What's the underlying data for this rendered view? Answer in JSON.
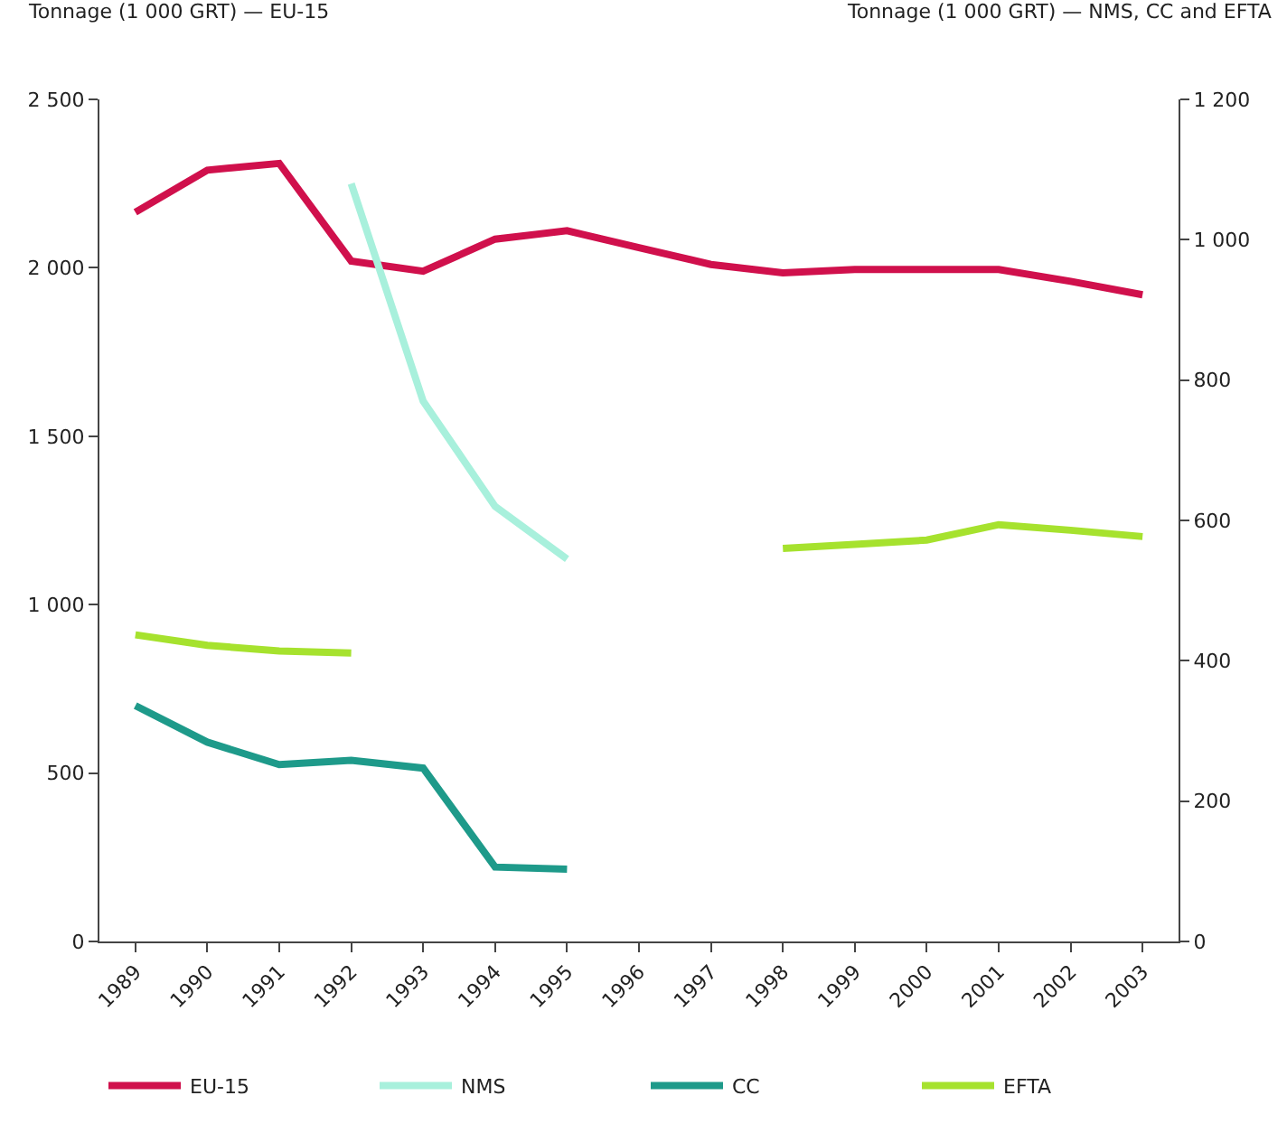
{
  "chart_data": {
    "type": "line",
    "ylabel": "Tonnage (1 000 GRT) — EU-15",
    "y2label": "Tonnage (1 000 GRT) — NMS, CC and EFTA",
    "categories": [
      "1989",
      "1990",
      "1991",
      "1992",
      "1993",
      "1994",
      "1995",
      "1996",
      "1997",
      "1998",
      "1999",
      "2000",
      "2001",
      "2002",
      "2003"
    ],
    "series": [
      {
        "name": "EU-15",
        "color": "#d0104c",
        "values": [
          2165,
          2290,
          2310,
          2020,
          1990,
          2085,
          2110,
          2060,
          2010,
          1985,
          1995,
          1995,
          1995,
          1960,
          1920
        ]
      },
      {
        "name": "NMS",
        "color": "#a8f0dc",
        "axis": "y2",
        "values": [
          null,
          null,
          null,
          1080,
          770,
          620,
          545,
          null,
          null,
          null,
          null,
          null,
          null,
          null,
          null
        ]
      },
      {
        "name": "CC",
        "color": "#1e9a8a",
        "axis": "y2",
        "values": [
          336,
          284,
          252,
          258,
          247,
          106,
          103,
          null,
          null,
          null,
          null,
          null,
          null,
          null,
          null
        ]
      },
      {
        "name": "EFTA",
        "color": "#a6e22e",
        "axis": "y2",
        "values": [
          437,
          422,
          414,
          411,
          null,
          null,
          null,
          null,
          null,
          560,
          566,
          572,
          594,
          586,
          577
        ]
      }
    ],
    "ylim": [
      0,
      2500
    ],
    "yticks": [
      0,
      {
        "value": 500,
        "label": "500"
      },
      {
        "value": 1000,
        "label": "1 000"
      },
      {
        "value": 1500,
        "label": "1 500"
      },
      {
        "value": 2000,
        "label": "2 000"
      },
      {
        "value": 2500,
        "label": "2 500"
      }
    ],
    "y2lim": [
      0,
      1200
    ],
    "y2ticks": [
      0,
      200,
      400,
      600,
      800,
      {
        "value": 1000,
        "label": "1 000"
      },
      {
        "value": 1200,
        "label": "1 200"
      }
    ],
    "legend": "bottom",
    "marker": "none",
    "line_style": "solid"
  }
}
